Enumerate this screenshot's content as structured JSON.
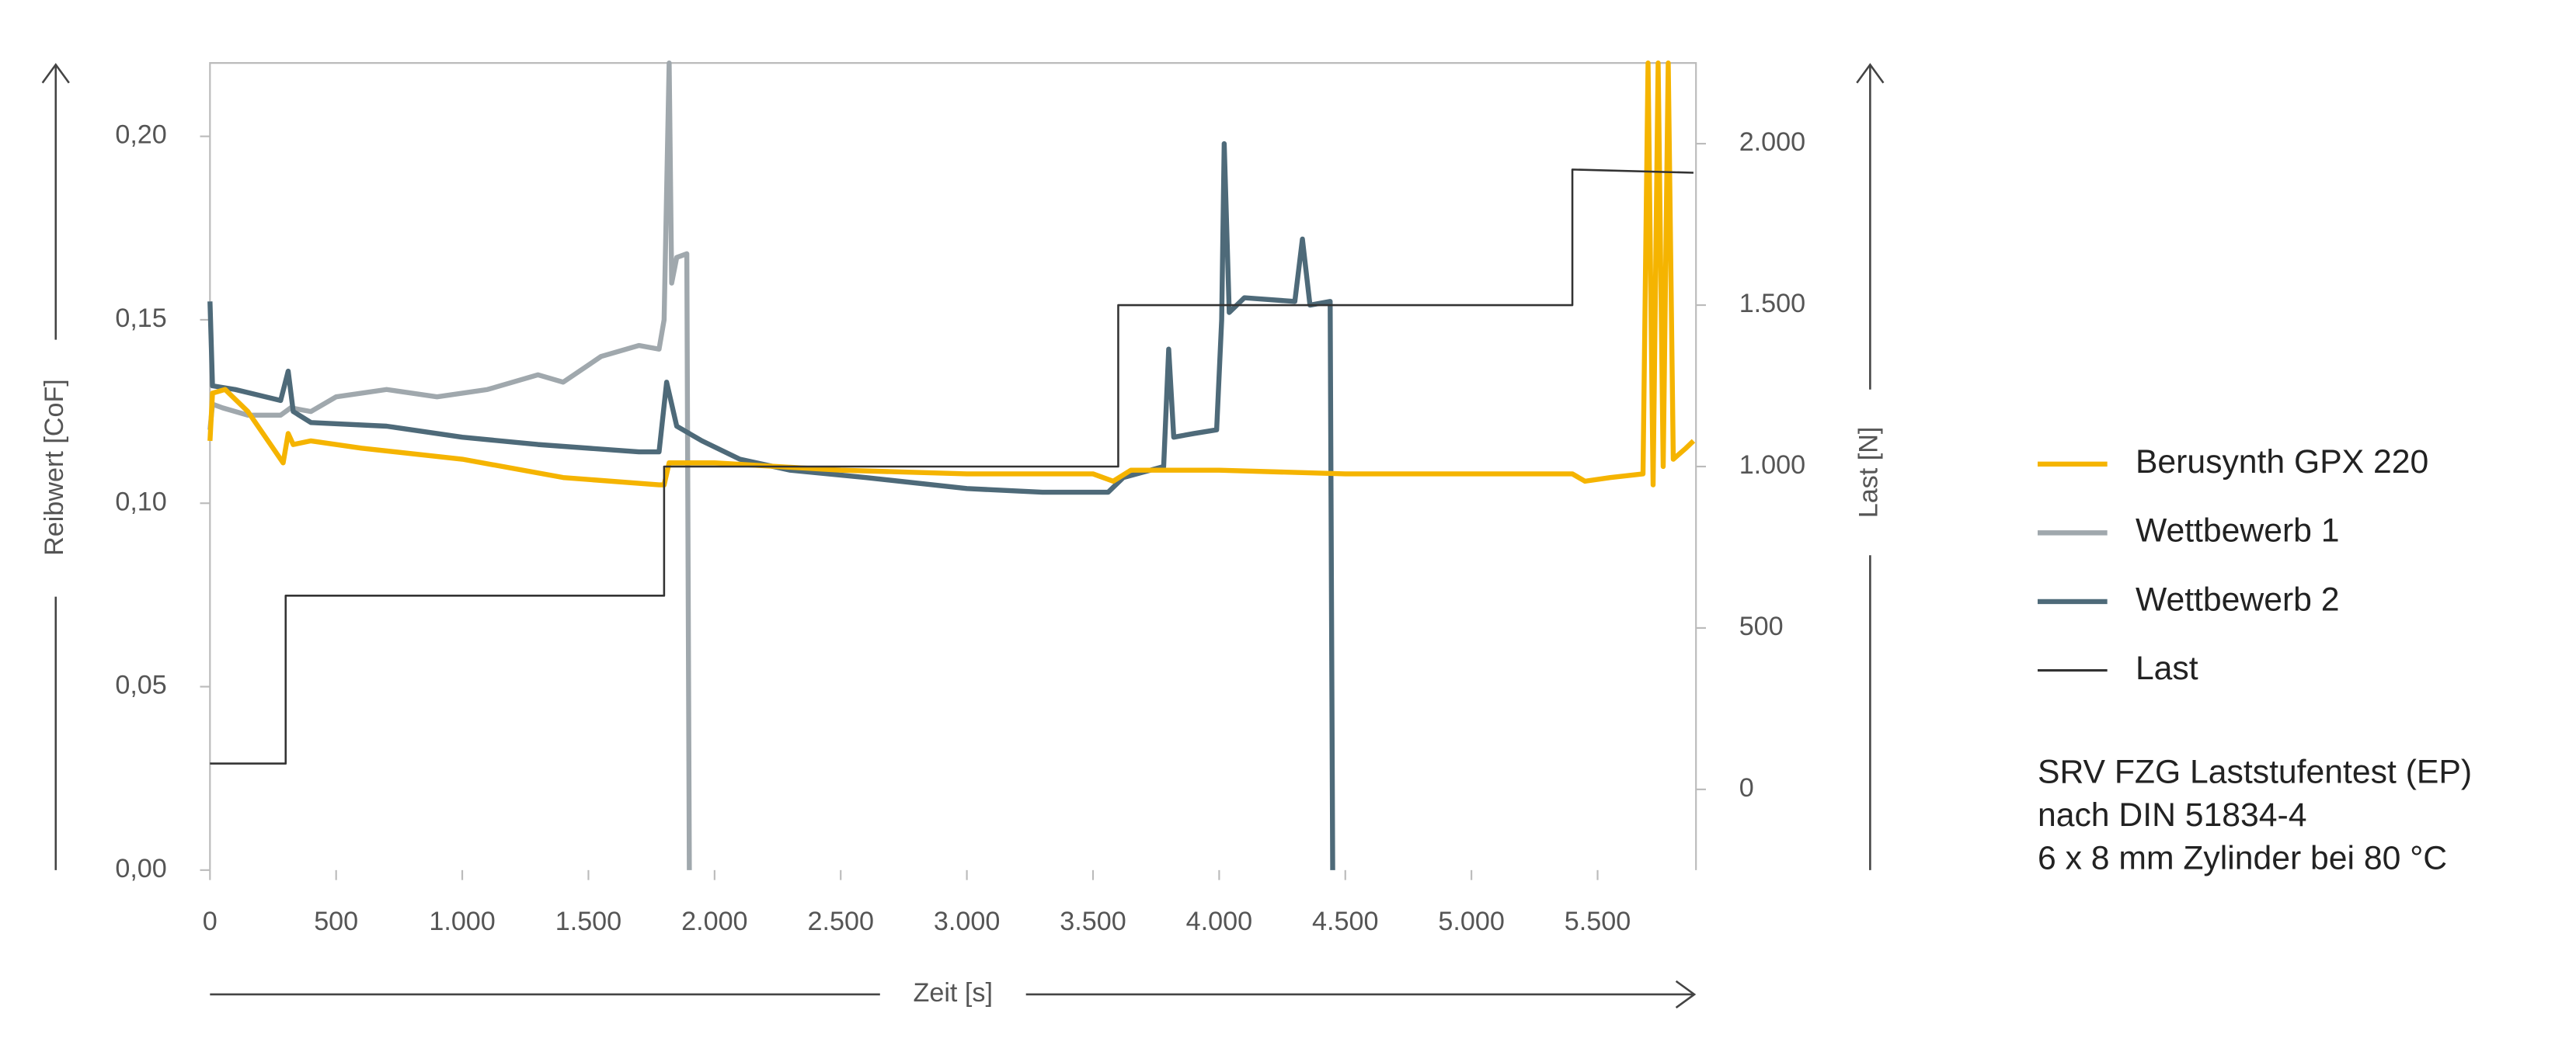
{
  "chart_data": {
    "type": "line",
    "x_label": "Zeit [s]",
    "y_label": "Reibwert [CoF]",
    "y2_label": "Last [N]",
    "xlim": [
      0,
      5890
    ],
    "ylim": [
      0,
      0.22
    ],
    "y2lim": [
      -250,
      2250
    ],
    "xticks": [
      0,
      500,
      {
        "value": 1000,
        "label": "1.000"
      },
      {
        "value": 1500,
        "label": "1.500"
      },
      {
        "value": 2000,
        "label": "2.000"
      },
      {
        "value": 2500,
        "label": "2.500"
      },
      {
        "value": 3000,
        "label": "3.000"
      },
      {
        "value": 3500,
        "label": "3.500"
      },
      {
        "value": 4000,
        "label": "4.000"
      },
      {
        "value": 4500,
        "label": "4.500"
      },
      {
        "value": 5000,
        "label": "5.000"
      },
      {
        "value": 5500,
        "label": "5.500"
      }
    ],
    "yticks": [
      {
        "value": 0,
        "label": "0,00"
      },
      {
        "value": 0.05,
        "label": "0,05"
      },
      {
        "value": 0.1,
        "label": "0,10"
      },
      {
        "value": 0.15,
        "label": "0,15"
      },
      {
        "value": 0.2,
        "label": "0,20"
      }
    ],
    "y2ticks": [
      0,
      500,
      {
        "value": 1000,
        "label": "1.000"
      },
      {
        "value": 1500,
        "label": "1.500"
      },
      {
        "value": 2000,
        "label": "2.000"
      }
    ],
    "legend": "right",
    "annotation": [
      "SRV FZG Laststufentest (EP)",
      "nach DIN 51834-4",
      "6 x 8 mm Zylinder bei 80 °C"
    ],
    "series": [
      {
        "name": "Berusynth GPX 220",
        "color": "#f5b400",
        "x": [
          0,
          10,
          60,
          150,
          250,
          290,
          310,
          330,
          400,
          600,
          1000,
          1400,
          1780,
          1800,
          1820,
          2000,
          2500,
          3000,
          3500,
          3580,
          3650,
          3800,
          4000,
          4500,
          5000,
          5400,
          5450,
          5550,
          5680,
          5700,
          5720,
          5740,
          5760,
          5780,
          5800,
          5850,
          5880
        ],
        "values": [
          0.117,
          0.13,
          0.131,
          0.125,
          0.115,
          0.111,
          0.119,
          0.116,
          0.117,
          0.115,
          0.112,
          0.107,
          0.105,
          0.105,
          0.111,
          0.111,
          0.109,
          0.108,
          0.108,
          0.106,
          0.109,
          0.109,
          0.109,
          0.108,
          0.108,
          0.108,
          0.106,
          0.107,
          0.108,
          0.22,
          0.105,
          0.22,
          0.11,
          0.22,
          0.112,
          0.115,
          0.117
        ]
      },
      {
        "name": "Wettbewerb 1",
        "color": "#a0a8ad",
        "x": [
          0,
          10,
          50,
          150,
          280,
          320,
          400,
          500,
          700,
          900,
          1100,
          1300,
          1400,
          1550,
          1700,
          1780,
          1800,
          1820,
          1830,
          1850,
          1890,
          1900
        ],
        "values": [
          0.12,
          0.127,
          0.126,
          0.124,
          0.124,
          0.126,
          0.125,
          0.129,
          0.131,
          0.129,
          0.131,
          0.135,
          0.133,
          0.14,
          0.143,
          0.142,
          0.15,
          0.22,
          0.16,
          0.167,
          0.168,
          0
        ]
      },
      {
        "name": "Wettbewerb 2",
        "color": "#4e6a79",
        "x": [
          0,
          10,
          100,
          280,
          310,
          330,
          400,
          700,
          1000,
          1300,
          1700,
          1780,
          1810,
          1850,
          1950,
          2100,
          2300,
          2600,
          3000,
          3300,
          3560,
          3620,
          3780,
          3800,
          3820,
          3900,
          3990,
          4010,
          4020,
          4040,
          4100,
          4300,
          4330,
          4360,
          4440,
          4450
        ],
        "values": [
          0.155,
          0.132,
          0.131,
          0.128,
          0.136,
          0.125,
          0.122,
          0.121,
          0.118,
          0.116,
          0.114,
          0.114,
          0.133,
          0.121,
          0.117,
          0.112,
          0.109,
          0.107,
          0.104,
          0.103,
          0.103,
          0.107,
          0.11,
          0.142,
          0.118,
          0.119,
          0.12,
          0.15,
          0.198,
          0.152,
          0.156,
          0.155,
          0.172,
          0.154,
          0.155,
          0
        ]
      },
      {
        "name": "Last",
        "color": "#333333",
        "axis": "y2",
        "x": [
          0,
          300,
          300,
          1800,
          1800,
          3600,
          3600,
          5400,
          5400,
          5880
        ],
        "values": [
          80,
          80,
          600,
          600,
          1000,
          1000,
          1500,
          1500,
          1920,
          1910
        ]
      }
    ]
  }
}
